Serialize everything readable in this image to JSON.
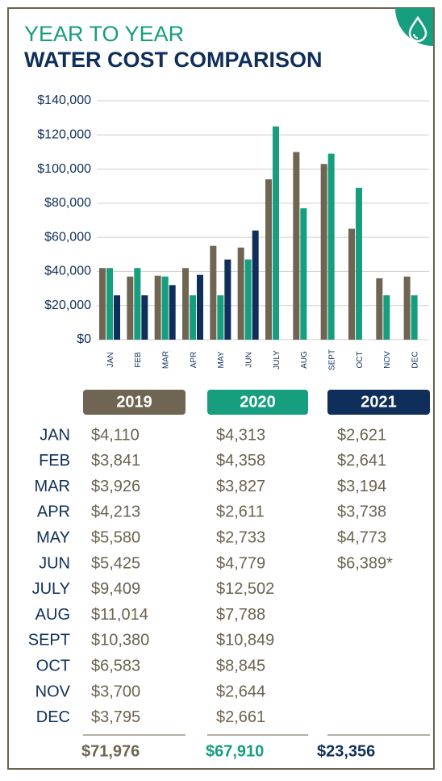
{
  "header": {
    "line1": "YEAR TO YEAR",
    "line2": "WATER COST COMPARISON"
  },
  "chart_data": {
    "type": "bar",
    "categories": [
      "JAN",
      "FEB",
      "MAR",
      "APR",
      "MAY",
      "JUN",
      "JULY",
      "AUG",
      "SEPT",
      "OCT",
      "NOV",
      "DEC"
    ],
    "series": [
      {
        "name": "2019",
        "color": "#6f6552",
        "values": [
          42000,
          37000,
          37500,
          42000,
          55000,
          54000,
          94000,
          110000,
          103000,
          65000,
          36000,
          37000
        ]
      },
      {
        "name": "2020",
        "color": "#169e7e",
        "values": [
          42000,
          42000,
          37000,
          26000,
          26000,
          47000,
          125000,
          77000,
          109000,
          89000,
          26000,
          26000
        ]
      },
      {
        "name": "2021",
        "color": "#0f2f5a",
        "values": [
          26000,
          26000,
          32000,
          38000,
          47000,
          64000,
          null,
          null,
          null,
          null,
          null,
          null
        ]
      }
    ],
    "ylim": [
      0,
      140000
    ],
    "yticks": [
      {
        "value": 0,
        "label": "$0"
      },
      {
        "value": 20000,
        "label": "$20,000"
      },
      {
        "value": 40000,
        "label": "$40,000"
      },
      {
        "value": 60000,
        "label": "$60,000"
      },
      {
        "value": 80000,
        "label": "$80,000"
      },
      {
        "value": 100000,
        "label": "$100,000"
      },
      {
        "value": 120000,
        "label": "$120,000"
      },
      {
        "value": 140000,
        "label": "$140,000"
      }
    ],
    "grid": true
  },
  "table": {
    "rows": [
      [
        "$4,110",
        "$4,313",
        "$2,621"
      ],
      [
        "$3,841",
        "$4,358",
        "$2,641"
      ],
      [
        "$3,926",
        "$3,827",
        "$3,194"
      ],
      [
        "$4,213",
        "$2,611",
        "$3,738"
      ],
      [
        "$5,580",
        "$2,733",
        "$4,773"
      ],
      [
        "$5,425",
        "$4,779",
        "$6,389*"
      ],
      [
        "$9,409",
        "$12,502",
        null
      ],
      [
        "$11,014",
        "$7,788",
        null
      ],
      [
        "$10,380",
        "$10,849",
        null
      ],
      [
        "$6,583",
        "$8,845",
        null
      ],
      [
        "$3,700",
        "$2,644",
        null
      ],
      [
        "$3,795",
        "$2,661",
        null
      ]
    ],
    "totals": [
      "$71,976",
      "$67,910",
      "$23,356"
    ]
  }
}
